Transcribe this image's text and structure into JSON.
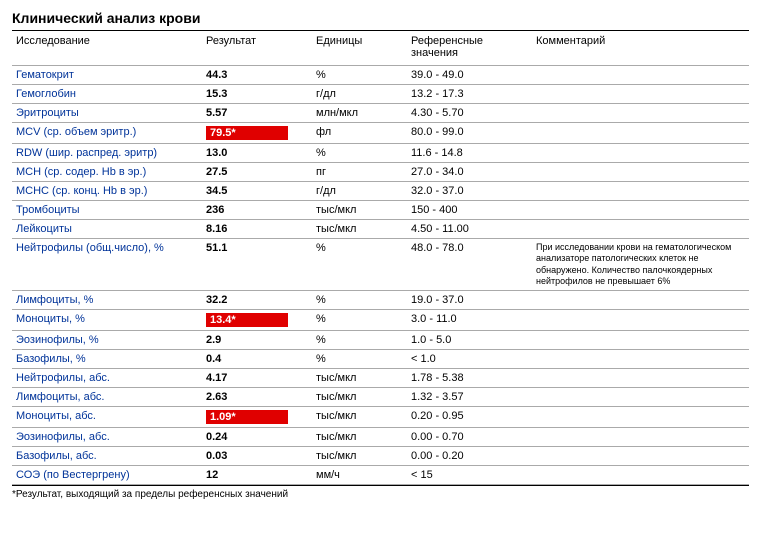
{
  "title": "Клинический анализ крови",
  "columns": [
    "Исследование",
    "Результат",
    "Единицы",
    "Референсные значения",
    "Комментарий"
  ],
  "footnote": "*Результат, выходящий за пределы референсных значений",
  "flag_bg": "#e00000",
  "flag_fg": "#ffffff",
  "link_color": "#003399",
  "rows": [
    {
      "name": "Гематокрит",
      "result": "44.3",
      "units": "%",
      "ref": "39.0 - 49.0",
      "comment": "",
      "flag": false
    },
    {
      "name": "Гемоглобин",
      "result": "15.3",
      "units": "г/дл",
      "ref": "13.2 - 17.3",
      "comment": "",
      "flag": false
    },
    {
      "name": "Эритроциты",
      "result": "5.57",
      "units": "млн/мкл",
      "ref": "4.30 - 5.70",
      "comment": "",
      "flag": false
    },
    {
      "name": "MCV (ср. объем эритр.)",
      "result": "79.5*",
      "units": "фл",
      "ref": "80.0 - 99.0",
      "comment": "",
      "flag": true
    },
    {
      "name": "RDW (шир. распред. эритр)",
      "result": "13.0",
      "units": "%",
      "ref": "11.6 - 14.8",
      "comment": "",
      "flag": false
    },
    {
      "name": "MCH (ср. содер. Hb в эр.)",
      "result": "27.5",
      "units": "пг",
      "ref": "27.0 - 34.0",
      "comment": "",
      "flag": false
    },
    {
      "name": "MCHC (ср. конц. Hb в эр.)",
      "result": "34.5",
      "units": "г/дл",
      "ref": "32.0 - 37.0",
      "comment": "",
      "flag": false
    },
    {
      "name": "Тромбоциты",
      "result": "236",
      "units": "тыс/мкл",
      "ref": "150 - 400",
      "comment": "",
      "flag": false
    },
    {
      "name": "Лейкоциты",
      "result": "8.16",
      "units": "тыс/мкл",
      "ref": "4.50 - 11.00",
      "comment": "",
      "flag": false
    },
    {
      "name": "Нейтрофилы (общ.число), %",
      "result": "51.1",
      "units": "%",
      "ref": "48.0 - 78.0",
      "comment": "При исследовании крови на гематологическом анализаторе патологических клеток не обнаружено. Количество палочкоядерных нейтрофилов не превышает 6%",
      "flag": false
    },
    {
      "name": "Лимфоциты, %",
      "result": "32.2",
      "units": "%",
      "ref": "19.0 - 37.0",
      "comment": "",
      "flag": false
    },
    {
      "name": "Моноциты, %",
      "result": "13.4*",
      "units": "%",
      "ref": "3.0 - 11.0",
      "comment": "",
      "flag": true
    },
    {
      "name": "Эозинофилы, %",
      "result": "2.9",
      "units": "%",
      "ref": "1.0 - 5.0",
      "comment": "",
      "flag": false
    },
    {
      "name": "Базофилы, %",
      "result": "0.4",
      "units": "%",
      "ref": "< 1.0",
      "comment": "",
      "flag": false
    },
    {
      "name": "Нейтрофилы, абс.",
      "result": "4.17",
      "units": "тыс/мкл",
      "ref": "1.78 - 5.38",
      "comment": "",
      "flag": false
    },
    {
      "name": "Лимфоциты, абс.",
      "result": "2.63",
      "units": "тыс/мкл",
      "ref": "1.32 - 3.57",
      "comment": "",
      "flag": false
    },
    {
      "name": "Моноциты, абс.",
      "result": "1.09*",
      "units": "тыс/мкл",
      "ref": "0.20 - 0.95",
      "comment": "",
      "flag": true
    },
    {
      "name": "Эозинофилы, абс.",
      "result": "0.24",
      "units": "тыс/мкл",
      "ref": "0.00 - 0.70",
      "comment": "",
      "flag": false
    },
    {
      "name": "Базофилы, абс.",
      "result": "0.03",
      "units": "тыс/мкл",
      "ref": "0.00 - 0.20",
      "comment": "",
      "flag": false
    },
    {
      "name": "СОЭ (по Вестергрену)",
      "result": "12",
      "units": "мм/ч",
      "ref": "< 15",
      "comment": "",
      "flag": false
    }
  ]
}
